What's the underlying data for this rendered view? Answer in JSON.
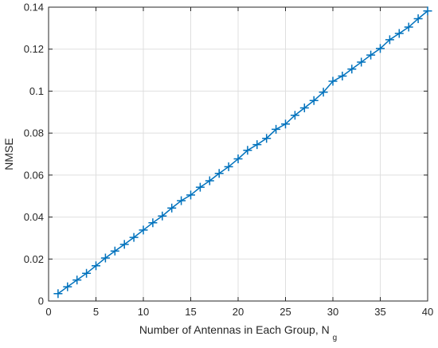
{
  "chart_data": {
    "type": "line",
    "title": "",
    "xlabel": "Number of Antennas in Each Group, N",
    "xlabel_subscript": "g",
    "ylabel": "NMSE",
    "xlim": [
      0,
      40
    ],
    "ylim": [
      0,
      0.14
    ],
    "grid": true,
    "xticks": [
      0,
      5,
      10,
      15,
      20,
      25,
      30,
      35,
      40
    ],
    "yticks": [
      0,
      0.02,
      0.04,
      0.06,
      0.08,
      0.1,
      0.12,
      0.14
    ],
    "xtick_labels": [
      "0",
      "5",
      "10",
      "15",
      "20",
      "25",
      "30",
      "35",
      "40"
    ],
    "ytick_labels": [
      "0",
      "0.02",
      "0.04",
      "0.06",
      "0.08",
      "0.1",
      "0.12",
      "0.14"
    ],
    "marker": "plus",
    "color": "#0072BD",
    "series": [
      {
        "x": [
          1,
          2,
          3,
          4,
          5,
          6,
          7,
          8,
          9,
          10,
          11,
          12,
          13,
          14,
          15,
          16,
          17,
          18,
          19,
          20,
          21,
          22,
          23,
          24,
          25,
          26,
          27,
          28,
          29,
          30,
          31,
          32,
          33,
          34,
          35,
          36,
          37,
          38,
          39,
          40
        ],
        "values": [
          0.0035,
          0.0068,
          0.01,
          0.0132,
          0.0168,
          0.0205,
          0.0238,
          0.027,
          0.0303,
          0.0338,
          0.0373,
          0.0405,
          0.0443,
          0.0478,
          0.0505,
          0.0542,
          0.0573,
          0.0608,
          0.064,
          0.0677,
          0.0718,
          0.0745,
          0.0775,
          0.0818,
          0.0843,
          0.0885,
          0.092,
          0.0955,
          0.0995,
          0.1047,
          0.1072,
          0.1105,
          0.1138,
          0.1172,
          0.1203,
          0.1245,
          0.1275,
          0.1305,
          0.1345,
          0.1382
        ]
      }
    ]
  }
}
